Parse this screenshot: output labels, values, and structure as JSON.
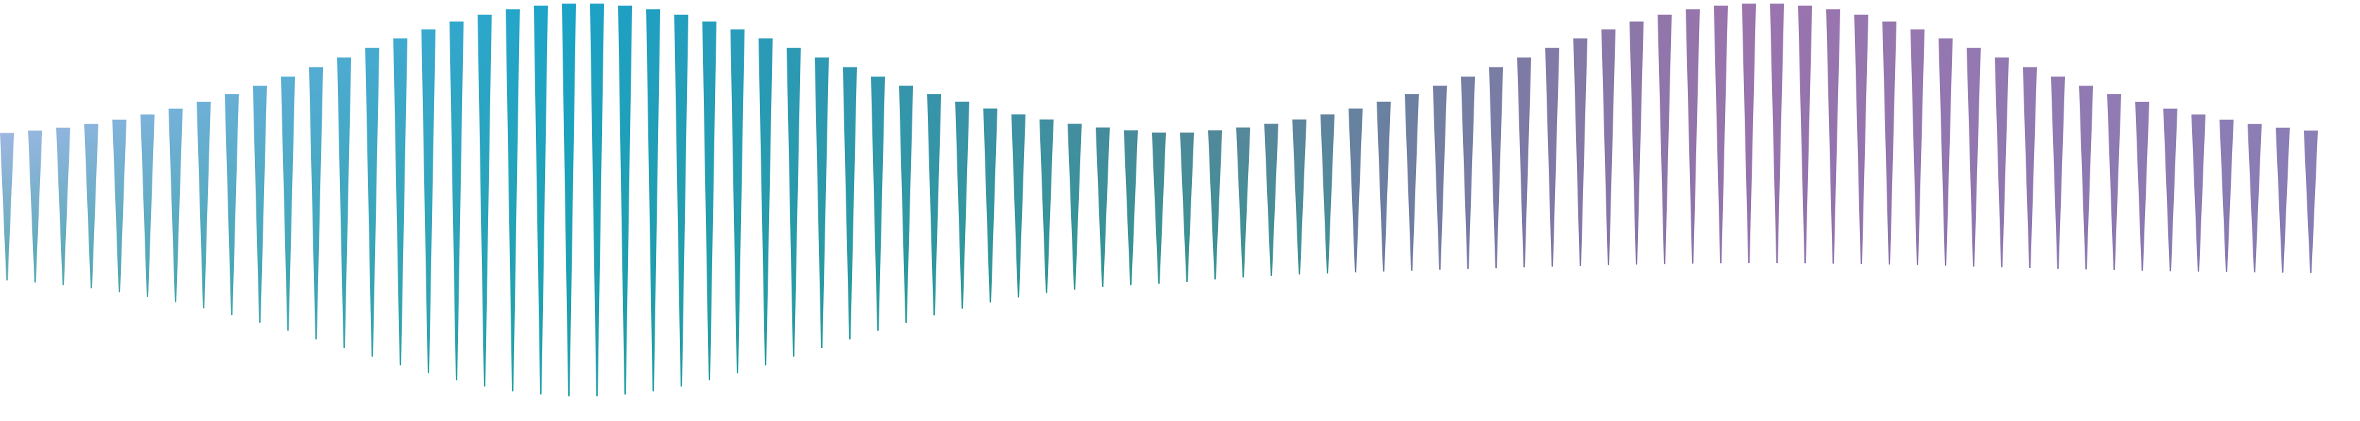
{
  "graphic": {
    "name": "decorative-spike-wave",
    "spike_count": 83,
    "palette": {
      "start": "#9db7e0",
      "teal": "#1aa3c8",
      "mid": "#4a8a98",
      "purple": "#9b73ad",
      "end": "#8a7fb6",
      "teal_tip": "#1f9e8d"
    }
  }
}
